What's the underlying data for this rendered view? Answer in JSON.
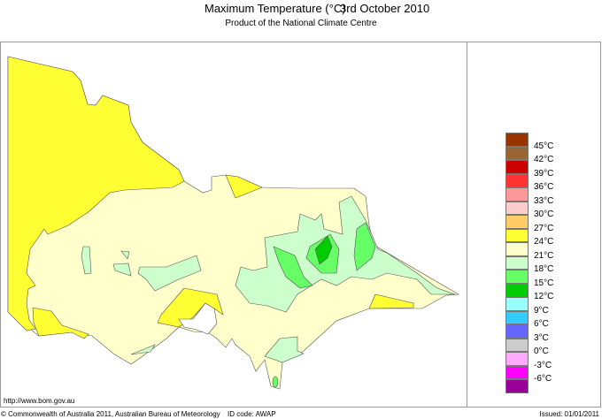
{
  "header": {
    "title": "Maximum Temperature (°C)",
    "date": "3rd October 2010",
    "subtitle": "Product of the National Climate Centre"
  },
  "map": {
    "region": "Victoria",
    "colors": {
      "outside": "#ffffff",
      "24-27": "#ffffcc",
      "27-30": "#ffff33",
      "18-21": "#ccffcc",
      "15-18": "#66ff66",
      "12-15": "#00cc00"
    }
  },
  "legend": {
    "colors": [
      "#993300",
      "#996633",
      "#cc0000",
      "#ff3333",
      "#ff9999",
      "#ffcccc",
      "#ffcc66",
      "#ffff33",
      "#ffffcc",
      "#ccffcc",
      "#66ff66",
      "#00cc00",
      "#99ffff",
      "#33ccff",
      "#6666ff",
      "#cccccc",
      "#ffaaff",
      "#ff00ff",
      "#990099"
    ],
    "labels": [
      "45°C",
      "42°C",
      "39°C",
      "36°C",
      "33°C",
      "30°C",
      "27°C",
      "24°C",
      "21°C",
      "18°C",
      "15°C",
      "12°C",
      "9°C",
      "6°C",
      "3°C",
      "0°C",
      "-3°C",
      "-6°C"
    ]
  },
  "footer": {
    "url": "http://www.bom.gov.au",
    "copyright": "© Commonwealth of Australia 2011, Australian Bureau of Meteorology",
    "id_code": "ID code: AWAP",
    "issued": "Issued: 01/01/2011"
  }
}
